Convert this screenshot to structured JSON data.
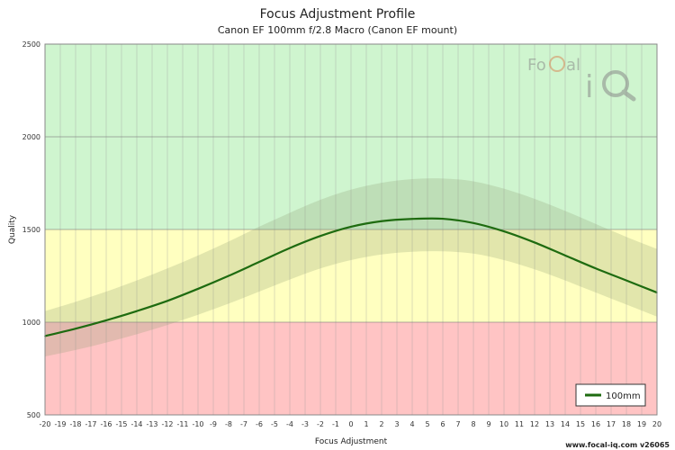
{
  "chart_data": {
    "type": "line",
    "title": "Focus Adjustment Profile",
    "subtitle": "Canon EF 100mm f/2.8 Macro (Canon EF mount)",
    "xlabel": "Focus Adjustment",
    "ylabel": "Quality",
    "xlim": [
      -20,
      20
    ],
    "ylim": [
      500,
      2500
    ],
    "x_ticks": [
      -20,
      -19,
      -18,
      -17,
      -16,
      -15,
      -14,
      -13,
      -12,
      -11,
      -10,
      -9,
      -8,
      -7,
      -6,
      -5,
      -4,
      -3,
      -2,
      -1,
      0,
      1,
      2,
      3,
      4,
      5,
      6,
      7,
      8,
      9,
      10,
      11,
      12,
      13,
      14,
      15,
      16,
      17,
      18,
      19,
      20
    ],
    "y_ticks": [
      500,
      1000,
      1500,
      2000,
      2500
    ],
    "bands": [
      {
        "from": 500,
        "to": 1000,
        "color": "#ffc4c4"
      },
      {
        "from": 1000,
        "to": 1500,
        "color": "#ffffc0"
      },
      {
        "from": 1500,
        "to": 2500,
        "color": "#cff5cf"
      }
    ],
    "series": [
      {
        "name": "100mm",
        "color": "#1e6b10",
        "x": [
          -20,
          -18,
          -16,
          -14,
          -12,
          -10,
          -8,
          -6,
          -4,
          -2,
          0,
          2,
          4,
          6,
          8,
          10,
          12,
          14,
          16,
          18,
          20
        ],
        "y": [
          925,
          965,
          1010,
          1060,
          1115,
          1180,
          1250,
          1325,
          1400,
          1465,
          1515,
          1545,
          1557,
          1558,
          1535,
          1490,
          1430,
          1360,
          1290,
          1225,
          1160
        ],
        "upper": [
          1060,
          1110,
          1165,
          1225,
          1290,
          1360,
          1435,
          1515,
          1590,
          1660,
          1715,
          1752,
          1772,
          1775,
          1760,
          1720,
          1665,
          1600,
          1530,
          1460,
          1395
        ],
        "lower": [
          815,
          850,
          890,
          935,
          985,
          1040,
          1100,
          1165,
          1230,
          1290,
          1335,
          1365,
          1380,
          1382,
          1370,
          1335,
          1285,
          1225,
          1160,
          1095,
          1030
        ]
      }
    ],
    "legend_position": "bottom-right",
    "grid": true
  },
  "branding": {
    "logo_text": "FoCal iQ",
    "footer": "www.focal-iq.com  v26065"
  }
}
